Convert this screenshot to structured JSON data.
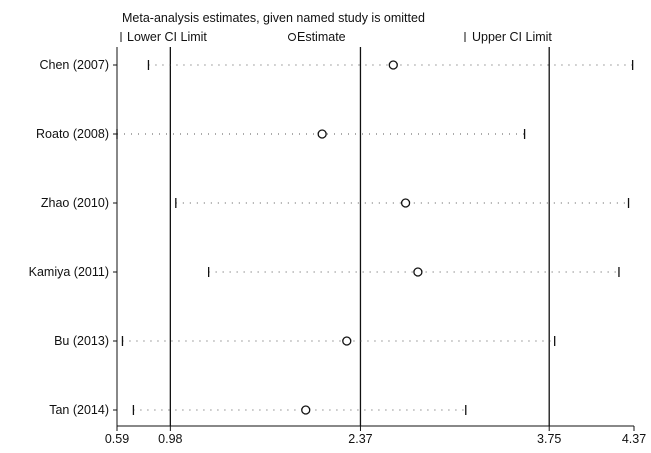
{
  "chart_data": {
    "type": "scatter",
    "title": "Meta-analysis estimates, given named study is omitted",
    "legend": {
      "placement": "top",
      "entries": [
        {
          "symbol": "tick",
          "label": "Lower CI Limit"
        },
        {
          "symbol": "circle",
          "label": "Estimate"
        },
        {
          "symbol": "tick",
          "label": "Upper CI Limit"
        }
      ]
    },
    "xlim": [
      0.59,
      4.37
    ],
    "x_ticks": [
      0.59,
      0.98,
      2.37,
      3.75,
      4.37
    ],
    "x_tick_labels": [
      "0.59",
      "0.98",
      "2.37",
      "3.75",
      "4.37"
    ],
    "reference_lines": [
      0.98,
      2.37,
      3.75
    ],
    "studies": [
      {
        "label": "Chen (2007)",
        "lower": 0.82,
        "estimate": 2.61,
        "upper": 4.36
      },
      {
        "label": "Roato (2008)",
        "lower": 0.59,
        "estimate": 2.09,
        "upper": 3.57
      },
      {
        "label": "Zhao (2010)",
        "lower": 1.02,
        "estimate": 2.7,
        "upper": 4.33
      },
      {
        "label": "Kamiya (2011)",
        "lower": 1.26,
        "estimate": 2.79,
        "upper": 4.26
      },
      {
        "label": "Bu (2013)",
        "lower": 0.63,
        "estimate": 2.27,
        "upper": 3.79
      },
      {
        "label": "Tan (2014)",
        "lower": 0.71,
        "estimate": 1.97,
        "upper": 3.14
      }
    ],
    "grid": false
  }
}
